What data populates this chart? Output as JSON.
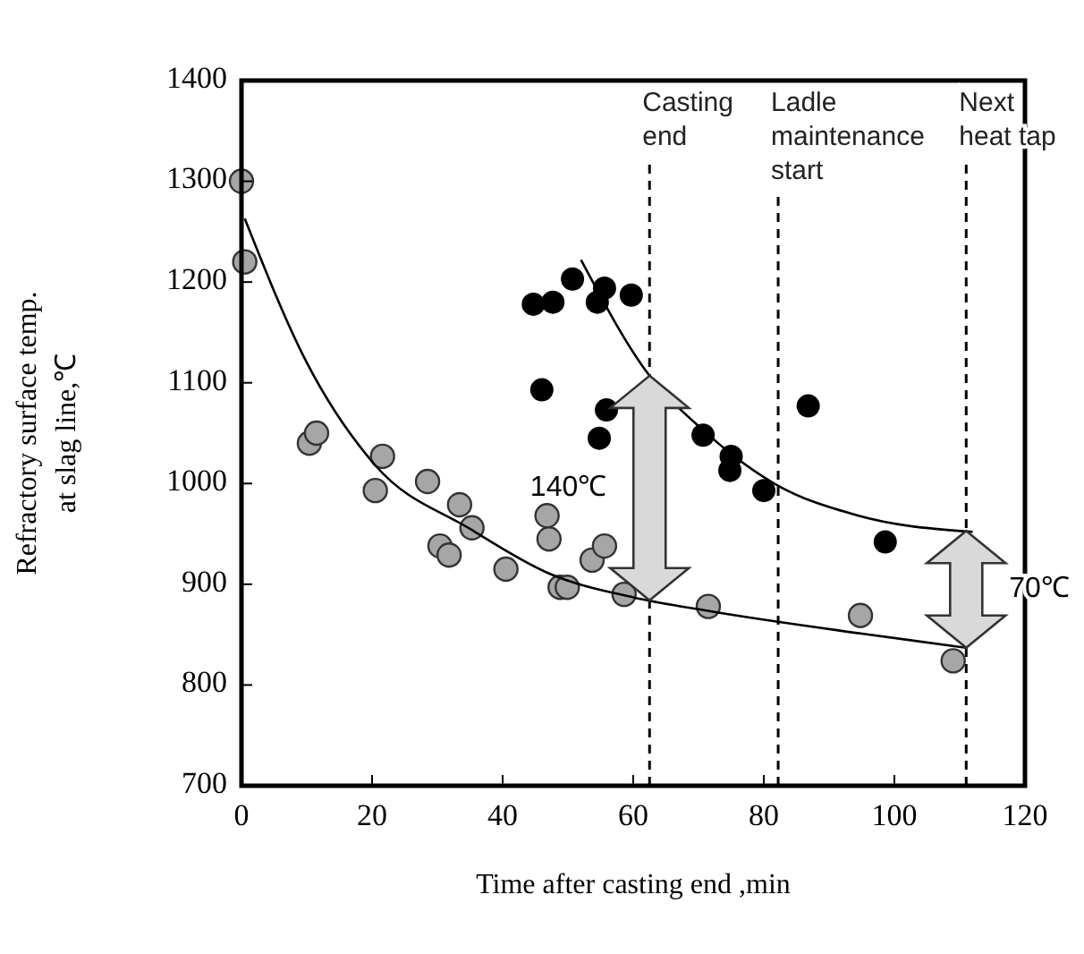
{
  "chart_data": {
    "type": "scatter",
    "xlabel": "Time after casting end ,min",
    "ylabel": "Refractory surface temp.\nat slag line,℃",
    "xlim": [
      0,
      120
    ],
    "xticks": [
      0,
      20,
      40,
      60,
      80,
      100,
      120
    ],
    "ylim": [
      700,
      1400
    ],
    "yticks": [
      700,
      800,
      900,
      1000,
      1100,
      1200,
      1300,
      1400
    ],
    "grid": false,
    "marker": "circle",
    "series": [
      {
        "color": "#a6a6a6",
        "x": [
          0,
          0.5,
          10.4,
          11.5,
          20.5,
          21.6,
          28.5,
          30.4,
          31.8,
          33.4,
          35.3,
          40.5,
          46.8,
          47.1,
          48.8,
          49.9,
          53.7,
          55.6,
          58.6,
          71.5,
          94.8,
          109
        ],
        "values": [
          1300,
          1220,
          1040,
          1050,
          993,
          1027,
          1002,
          938,
          929,
          979,
          956,
          915,
          968,
          945,
          897,
          897,
          924,
          938,
          890,
          878,
          869,
          824
        ]
      },
      {
        "color": "#000000",
        "x": [
          44.7,
          47.7,
          50.7,
          54.5,
          55.6,
          59.7,
          46,
          55.9,
          54.8,
          70.7,
          75,
          74.8,
          80,
          86.8,
          98.6
        ],
        "values": [
          1178,
          1180,
          1203,
          1180,
          1194,
          1187,
          1093,
          1073,
          1045,
          1048,
          1027,
          1013,
          993,
          1077,
          942
        ]
      },
      {
        "type": "line",
        "color": "#000000",
        "marker": "none",
        "x": [
          0.5,
          10,
          20.5,
          35,
          47,
          60,
          72,
          95,
          111
        ],
        "values": [
          1263,
          1120,
          1018,
          955,
          911,
          887,
          873,
          851,
          837
        ]
      },
      {
        "type": "line",
        "color": "#000000",
        "marker": "none",
        "x": [
          52,
          62.5,
          70.7,
          81.6,
          94.5,
          112
        ],
        "values": [
          1222,
          1107,
          1053,
          1000,
          968,
          952
        ]
      }
    ],
    "ref_lines": [
      {
        "axis": "x",
        "value": 62.5,
        "label": "Casting\nend",
        "line_style": "dashed"
      },
      {
        "axis": "x",
        "value": 82.2,
        "label": "Ladle\nmaintenance\nstart",
        "line_style": "dashed"
      },
      {
        "axis": "x",
        "value": 111,
        "label": "Next\nheat tap",
        "line_style": "dashed"
      }
    ],
    "annotations": [
      {
        "text": "140℃",
        "x": 62.5,
        "y": 995
      },
      {
        "text": "70℃",
        "x": 111,
        "y": 895
      }
    ]
  }
}
